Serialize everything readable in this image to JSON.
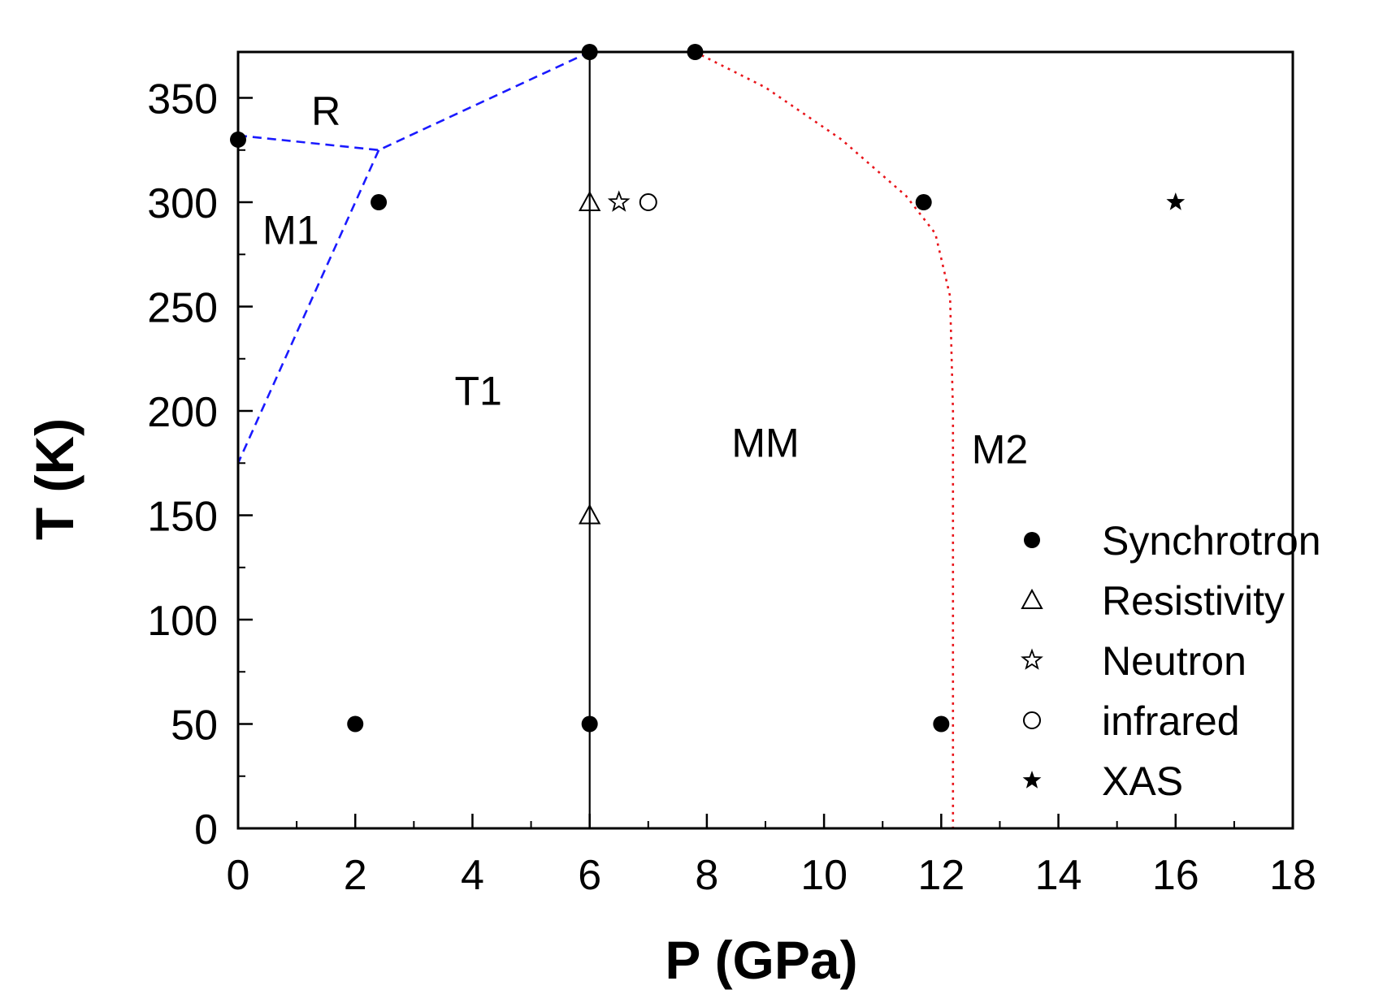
{
  "chart_data": {
    "type": "scatter",
    "title": "",
    "xlabel": "P (GPa)",
    "ylabel": "T (K)",
    "xlim": [
      0,
      18
    ],
    "ylim": [
      0,
      372
    ],
    "x_ticks": [
      0,
      2,
      4,
      6,
      8,
      10,
      12,
      14,
      16,
      18
    ],
    "x_tick_labels": [
      "0",
      "2",
      "4",
      "6",
      "8",
      "10",
      "12",
      "14",
      "16",
      "18"
    ],
    "y_ticks": [
      0,
      50,
      100,
      150,
      200,
      250,
      300,
      350
    ],
    "y_tick_labels": [
      "0",
      "50",
      "100",
      "150",
      "200",
      "250",
      "300",
      "350"
    ],
    "grid": false,
    "legend_position": "bottom-right",
    "series": [
      {
        "name": "Synchrotron",
        "marker": "filled-circle",
        "points": [
          [
            0,
            330
          ],
          [
            2.4,
            300
          ],
          [
            6,
            372
          ],
          [
            7.8,
            372
          ],
          [
            11.7,
            300
          ],
          [
            2,
            50
          ],
          [
            6,
            50
          ],
          [
            12,
            50
          ]
        ]
      },
      {
        "name": "Resistivity",
        "marker": "open-triangle",
        "points": [
          [
            6,
            300
          ],
          [
            6,
            150
          ]
        ]
      },
      {
        "name": "Neutron",
        "marker": "open-star",
        "points": [
          [
            6.5,
            300
          ]
        ]
      },
      {
        "name": "infrared",
        "marker": "open-circle",
        "points": [
          [
            7,
            300
          ]
        ]
      },
      {
        "name": "XAS",
        "marker": "filled-star",
        "points": [
          [
            16,
            300
          ]
        ]
      }
    ],
    "phase_boundaries": [
      {
        "style": "dashed",
        "color": "#1a1aff",
        "points": [
          [
            0,
            332
          ],
          [
            2.4,
            325
          ],
          [
            6,
            372
          ]
        ]
      },
      {
        "style": "dashed",
        "color": "#1a1aff",
        "points": [
          [
            2.4,
            325
          ],
          [
            0,
            175
          ]
        ]
      },
      {
        "style": "solid",
        "color": "#000000",
        "points": [
          [
            6,
            372
          ],
          [
            6,
            0
          ]
        ]
      },
      {
        "style": "dotted",
        "color": "#e8141a",
        "points": [
          [
            7.8,
            372
          ],
          [
            9,
            355
          ],
          [
            10.3,
            330
          ],
          [
            11.4,
            303
          ],
          [
            11.9,
            285
          ],
          [
            12.15,
            255
          ],
          [
            12.2,
            200
          ],
          [
            12.2,
            100
          ],
          [
            12.2,
            0
          ]
        ]
      }
    ],
    "regions": [
      {
        "label": "R",
        "x": 1.5,
        "y": 337
      },
      {
        "label": "M1",
        "x": 0.9,
        "y": 280
      },
      {
        "label": "T1",
        "x": 4.1,
        "y": 203
      },
      {
        "label": "MM",
        "x": 9,
        "y": 178
      },
      {
        "label": "M2",
        "x": 13,
        "y": 175
      }
    ]
  }
}
